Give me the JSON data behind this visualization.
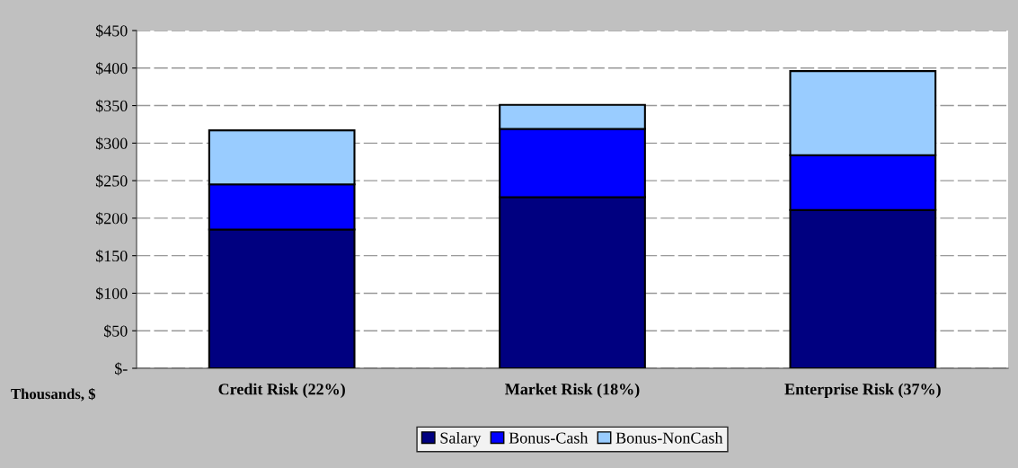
{
  "chart_data": {
    "type": "bar",
    "stacked": true,
    "categories": [
      "Credit Risk (22%)",
      "Market Risk (18%)",
      "Enterprise Risk (37%)"
    ],
    "series": [
      {
        "name": "Salary",
        "color": "#000080",
        "values": [
          185,
          228,
          211
        ]
      },
      {
        "name": "Bonus-Cash",
        "color": "#0000ff",
        "values": [
          60,
          91,
          73
        ]
      },
      {
        "name": "Bonus-NonCash",
        "color": "#99ccff",
        "values": [
          72,
          32,
          112
        ]
      }
    ],
    "ylabel": "Thousands, $",
    "ylim": [
      0,
      450
    ],
    "yticks": [
      {
        "value": 0,
        "label": "$-"
      },
      {
        "value": 50,
        "label": "$50"
      },
      {
        "value": 100,
        "label": "$100"
      },
      {
        "value": 150,
        "label": "$150"
      },
      {
        "value": 200,
        "label": "$200"
      },
      {
        "value": 250,
        "label": "$250"
      },
      {
        "value": 300,
        "label": "$300"
      },
      {
        "value": 350,
        "label": "$350"
      },
      {
        "value": 400,
        "label": "$400"
      },
      {
        "value": 450,
        "label": "$450"
      }
    ],
    "grid": "y",
    "legend": "bottom"
  }
}
